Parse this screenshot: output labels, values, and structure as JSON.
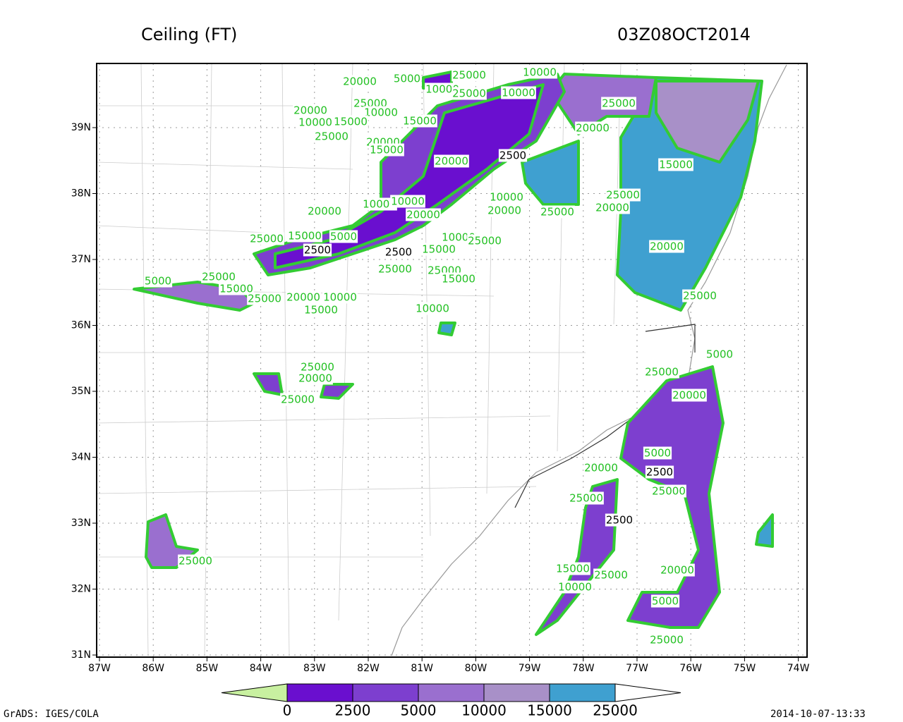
{
  "header": {
    "title": "Ceiling (FT)",
    "time": "03Z08OCT2014"
  },
  "map": {
    "lon_ticks": [
      "87W",
      "86W",
      "85W",
      "84W",
      "83W",
      "82W",
      "81W",
      "80W",
      "79W",
      "78W",
      "77W",
      "76W",
      "75W",
      "74W"
    ],
    "lat_ticks": [
      "31N",
      "32N",
      "33N",
      "34N",
      "35N",
      "36N",
      "37N",
      "38N",
      "39N"
    ],
    "contour_labels": [
      "25000",
      "5000",
      "20000",
      "10000",
      "10000",
      "25000",
      "10000",
      "25000",
      "20000",
      "10000",
      "10000",
      "15000",
      "15000",
      "25000",
      "20000",
      "15000",
      "20000",
      "2500",
      "25000",
      "20000",
      "15000",
      "10000",
      "25000",
      "20000",
      "25000",
      "20000",
      "10000",
      "10000",
      "20000",
      "20000",
      "15000",
      "5000",
      "25000",
      "2500",
      "2500",
      "10000",
      "15000",
      "25000",
      "20000",
      "25000",
      "25000",
      "15000",
      "25000",
      "5000",
      "15000",
      "25000",
      "20000",
      "10000",
      "15000",
      "10000",
      "25000",
      "5000",
      "25000",
      "25000",
      "20000",
      "25000",
      "20000",
      "5000",
      "2500",
      "20000",
      "25000",
      "25000",
      "2500",
      "15000",
      "25000",
      "20000",
      "10000",
      "5000",
      "25000",
      "25000"
    ]
  },
  "colorbar": {
    "levels": [
      "0",
      "2500",
      "5000",
      "10000",
      "15000",
      "25000"
    ],
    "colors": [
      "#c8f0a0",
      "#6a0fcf",
      "#7d3fcf",
      "#9a6fcf",
      "#a890c8",
      "#3fa0d0",
      "#ffffff"
    ]
  },
  "footer": {
    "left": "GrADS: IGES/COLA",
    "right": "2014-10-07-13:33"
  }
}
